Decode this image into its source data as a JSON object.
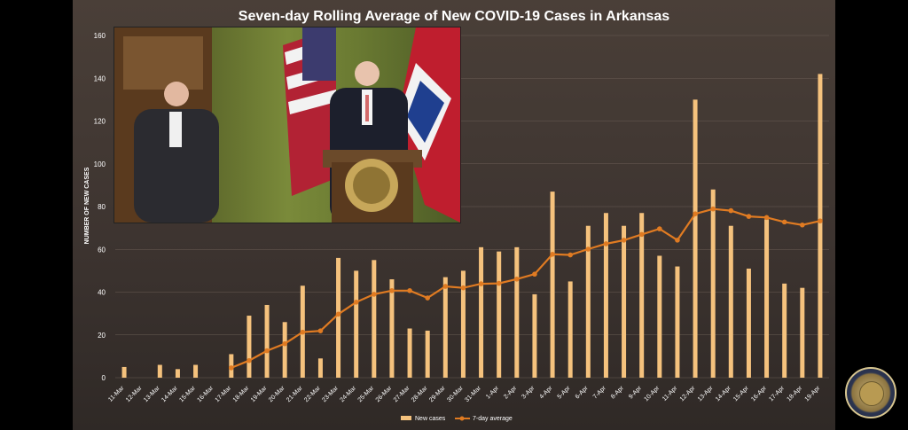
{
  "chart_data": {
    "type": "bar",
    "title": "Seven-day Rolling Average of New COVID-19 Cases in Arkansas",
    "ylabel": "NUMBER OF NEW CASES",
    "xlabel": "",
    "ylim": [
      0,
      160
    ],
    "yticks": [
      "0",
      "20",
      "40",
      "60",
      "80",
      "100",
      "120",
      "140",
      "160"
    ],
    "categories": [
      "11-Mar",
      "12-Mar",
      "13-Mar",
      "14-Mar",
      "15-Mar",
      "16-Mar",
      "17-Mar",
      "18-Mar",
      "19-Mar",
      "20-Mar",
      "21-Mar",
      "22-Mar",
      "23-Mar",
      "24-Mar",
      "25-Mar",
      "26-Mar",
      "27-Mar",
      "28-Mar",
      "29-Mar",
      "30-Mar",
      "31-Mar",
      "1-Apr",
      "2-Apr",
      "3-Apr",
      "4-Apr",
      "5-Apr",
      "6-Apr",
      "7-Apr",
      "8-Apr",
      "9-Apr",
      "10-Apr",
      "11-Apr",
      "12-Apr",
      "13-Apr",
      "14-Apr",
      "15-Apr",
      "16-Apr",
      "17-Apr",
      "18-Apr",
      "19-Apr"
    ],
    "series": [
      {
        "name": "New cases",
        "kind": "bar",
        "color": "#f5c27d",
        "values": [
          5,
          0,
          6,
          4,
          6,
          0,
          11,
          29,
          34,
          26,
          43,
          9,
          56,
          50,
          55,
          46,
          23,
          22,
          47,
          50,
          61,
          59,
          61,
          39,
          87,
          45,
          71,
          77,
          71,
          77,
          57,
          52,
          130,
          88,
          71,
          51,
          74,
          44,
          42,
          142
        ]
      },
      {
        "name": "7-day average",
        "kind": "line",
        "color": "#e07b22",
        "values": [
          null,
          null,
          null,
          null,
          null,
          null,
          4.6,
          8.0,
          12.6,
          15.9,
          21.3,
          21.9,
          29.7,
          35.3,
          39.0,
          40.7,
          40.7,
          37.3,
          42.7,
          42.0,
          43.9,
          44.1,
          46.1,
          48.4,
          57.7,
          57.4,
          60.1,
          62.6,
          64.3,
          67.0,
          69.6,
          64.3,
          76.6,
          78.9,
          78.1,
          75.4,
          74.9,
          72.8,
          71.4,
          73.3
        ]
      }
    ],
    "legend_position": "bottom-center",
    "grid": true
  }
}
